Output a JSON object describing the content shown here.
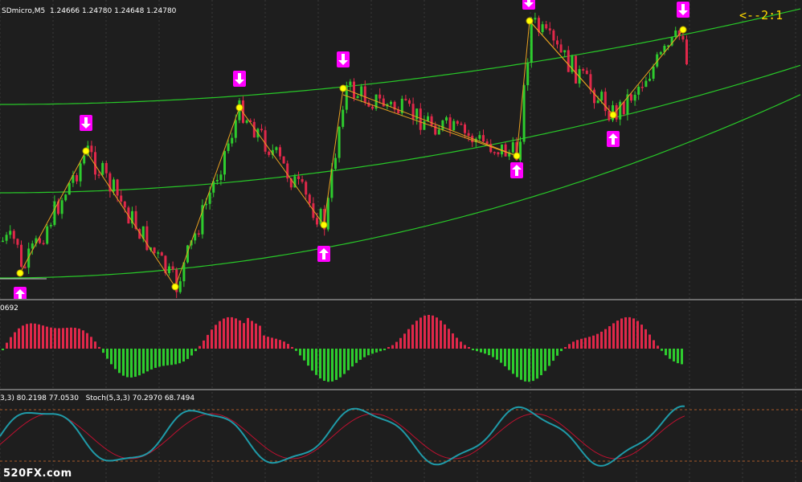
{
  "main_chart": {
    "header": "SDmicro,M5  1.24666 1.24780 1.24648 1.24780",
    "ratio_label": "<--2:1"
  },
  "oscillator": {
    "label": "0692"
  },
  "stochastic": {
    "label": "3,3) 80.2198 77.0530   Stoch(5,3,3) 70.2970 68.7494"
  },
  "watermark": "520FX.com",
  "colors": {
    "bull": "#2ecc2e",
    "bear": "#e0284a",
    "channel": "#28c828",
    "zigzag": "#e8a020",
    "pivot": "#ffff00",
    "arrow": "#ff00ff",
    "ratio": "#ffd800",
    "stoch_main": "#1f9aa8",
    "stoch_signal": "#c01030"
  }
}
